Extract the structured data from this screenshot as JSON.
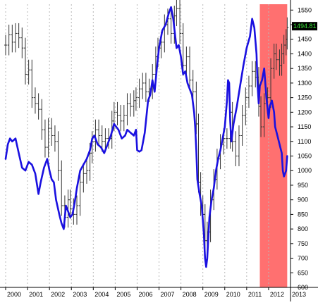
{
  "chart_data": {
    "type": "line",
    "grid": "vertical dashed lines at each year",
    "x_range": [
      2000,
      2013
    ],
    "y_range": [
      600,
      1570
    ],
    "y_axis_side": "right",
    "x_ticks": [
      "2000",
      "2001",
      "2002",
      "2003",
      "2004",
      "2005",
      "2006",
      "2007",
      "2008",
      "2009",
      "2010",
      "2011",
      "2012",
      "2013"
    ],
    "y_ticks": [
      "600",
      "650",
      "700",
      "750",
      "800",
      "850",
      "900",
      "950",
      "1000",
      "1050",
      "1100",
      "1150",
      "1200",
      "1250",
      "1300",
      "1350",
      "1400",
      "1450",
      "1500",
      "1550"
    ],
    "last_value_label": "1494.81",
    "highlight_region": {
      "x_start": 2011.6,
      "x_end": 2012.85,
      "color": "#ff7070"
    },
    "series": [
      {
        "style": "ohlc-bars",
        "color": "#333333",
        "points": [
          [
            2000.0,
            1430
          ],
          [
            2000.15,
            1465
          ],
          [
            2000.3,
            1440
          ],
          [
            2000.45,
            1470
          ],
          [
            2000.6,
            1455
          ],
          [
            2000.75,
            1420
          ],
          [
            2000.9,
            1330
          ],
          [
            2001.05,
            1345
          ],
          [
            2001.2,
            1250
          ],
          [
            2001.35,
            1230
          ],
          [
            2001.5,
            1210
          ],
          [
            2001.65,
            1140
          ],
          [
            2001.8,
            1080
          ],
          [
            2001.95,
            1145
          ],
          [
            2002.1,
            1120
          ],
          [
            2002.25,
            1100
          ],
          [
            2002.4,
            1000
          ],
          [
            2002.55,
            880
          ],
          [
            2002.7,
            840
          ],
          [
            2002.85,
            900
          ],
          [
            2002.95,
            870
          ],
          [
            2003.1,
            850
          ],
          [
            2003.25,
            880
          ],
          [
            2003.4,
            960
          ],
          [
            2003.55,
            990
          ],
          [
            2003.7,
            1000
          ],
          [
            2003.85,
            1060
          ],
          [
            2003.95,
            1100
          ],
          [
            2004.1,
            1140
          ],
          [
            2004.25,
            1120
          ],
          [
            2004.4,
            1100
          ],
          [
            2004.55,
            1110
          ],
          [
            2004.7,
            1110
          ],
          [
            2004.85,
            1170
          ],
          [
            2004.95,
            1200
          ],
          [
            2005.1,
            1190
          ],
          [
            2005.25,
            1170
          ],
          [
            2005.4,
            1190
          ],
          [
            2005.55,
            1230
          ],
          [
            2005.7,
            1220
          ],
          [
            2005.85,
            1240
          ],
          [
            2005.95,
            1250
          ],
          [
            2006.1,
            1280
          ],
          [
            2006.25,
            1300
          ],
          [
            2006.4,
            1270
          ],
          [
            2006.55,
            1280
          ],
          [
            2006.7,
            1330
          ],
          [
            2006.85,
            1390
          ],
          [
            2006.95,
            1420
          ],
          [
            2007.1,
            1440
          ],
          [
            2007.25,
            1500
          ],
          [
            2007.4,
            1520
          ],
          [
            2007.55,
            1470
          ],
          [
            2007.7,
            1530
          ],
          [
            2007.8,
            1555
          ],
          [
            2007.95,
            1470
          ],
          [
            2008.1,
            1360
          ],
          [
            2008.25,
            1390
          ],
          [
            2008.4,
            1310
          ],
          [
            2008.55,
            1270
          ],
          [
            2008.7,
            1160
          ],
          [
            2008.8,
            960
          ],
          [
            2008.9,
            880
          ],
          [
            2009.0,
            850
          ],
          [
            2009.1,
            760
          ],
          [
            2009.2,
            790
          ],
          [
            2009.35,
            900
          ],
          [
            2009.5,
            970
          ],
          [
            2009.65,
            1040
          ],
          [
            2009.8,
            1090
          ],
          [
            2009.95,
            1110
          ],
          [
            2010.1,
            1110
          ],
          [
            2010.25,
            1200
          ],
          [
            2010.35,
            1100
          ],
          [
            2010.5,
            1050
          ],
          [
            2010.65,
            1120
          ],
          [
            2010.8,
            1190
          ],
          [
            2010.95,
            1250
          ],
          [
            2011.1,
            1290
          ],
          [
            2011.25,
            1340
          ],
          [
            2011.4,
            1320
          ],
          [
            2011.55,
            1220
          ],
          [
            2011.65,
            1150
          ],
          [
            2011.8,
            1230
          ],
          [
            2011.95,
            1250
          ],
          [
            2012.1,
            1350
          ],
          [
            2012.25,
            1400
          ],
          [
            2012.35,
            1380
          ],
          [
            2012.5,
            1360
          ],
          [
            2012.6,
            1400
          ],
          [
            2012.7,
            1430
          ],
          [
            2012.8,
            1450
          ],
          [
            2012.85,
            1490
          ]
        ]
      },
      {
        "style": "line",
        "color": "#1a10e0",
        "points": [
          [
            2000.0,
            1040
          ],
          [
            2000.1,
            1090
          ],
          [
            2000.2,
            1110
          ],
          [
            2000.3,
            1100
          ],
          [
            2000.45,
            1110
          ],
          [
            2000.6,
            1060
          ],
          [
            2000.75,
            1010
          ],
          [
            2000.9,
            1000
          ],
          [
            2001.05,
            1030
          ],
          [
            2001.2,
            1020
          ],
          [
            2001.35,
            990
          ],
          [
            2001.5,
            920
          ],
          [
            2001.6,
            960
          ],
          [
            2001.75,
            1010
          ],
          [
            2001.9,
            1040
          ],
          [
            2002.0,
            1000
          ],
          [
            2002.1,
            970
          ],
          [
            2002.2,
            960
          ],
          [
            2002.3,
            900
          ],
          [
            2002.45,
            850
          ],
          [
            2002.55,
            820
          ],
          [
            2002.65,
            800
          ],
          [
            2002.75,
            880
          ],
          [
            2002.85,
            860
          ],
          [
            2002.95,
            840
          ],
          [
            2003.05,
            850
          ],
          [
            2003.15,
            890
          ],
          [
            2003.25,
            940
          ],
          [
            2003.4,
            1000
          ],
          [
            2003.55,
            1020
          ],
          [
            2003.7,
            1040
          ],
          [
            2003.85,
            1070
          ],
          [
            2003.95,
            1110
          ],
          [
            2004.05,
            1120
          ],
          [
            2004.2,
            1090
          ],
          [
            2004.35,
            1080
          ],
          [
            2004.5,
            1060
          ],
          [
            2004.65,
            1090
          ],
          [
            2004.8,
            1120
          ],
          [
            2004.95,
            1160
          ],
          [
            2005.05,
            1150
          ],
          [
            2005.15,
            1140
          ],
          [
            2005.3,
            1110
          ],
          [
            2005.45,
            1120
          ],
          [
            2005.55,
            1140
          ],
          [
            2005.7,
            1130
          ],
          [
            2005.85,
            1120
          ],
          [
            2005.95,
            1140
          ],
          [
            2006.0,
            1070
          ],
          [
            2006.1,
            1065
          ],
          [
            2006.2,
            1070
          ],
          [
            2006.35,
            1130
          ],
          [
            2006.5,
            1240
          ],
          [
            2006.6,
            1260
          ],
          [
            2006.7,
            1310
          ],
          [
            2006.8,
            1270
          ],
          [
            2006.9,
            1350
          ],
          [
            2007.0,
            1420
          ],
          [
            2007.15,
            1480
          ],
          [
            2007.3,
            1500
          ],
          [
            2007.45,
            1540
          ],
          [
            2007.55,
            1560
          ],
          [
            2007.65,
            1520
          ],
          [
            2007.8,
            1420
          ],
          [
            2007.9,
            1430
          ],
          [
            2008.0,
            1390
          ],
          [
            2008.1,
            1330
          ],
          [
            2008.2,
            1340
          ],
          [
            2008.3,
            1300
          ],
          [
            2008.4,
            1280
          ],
          [
            2008.5,
            1260
          ],
          [
            2008.6,
            1200
          ],
          [
            2008.65,
            1150
          ],
          [
            2008.7,
            1070
          ],
          [
            2008.75,
            970
          ],
          [
            2008.85,
            920
          ],
          [
            2008.95,
            880
          ],
          [
            2009.0,
            830
          ],
          [
            2009.05,
            780
          ],
          [
            2009.1,
            700
          ],
          [
            2009.15,
            670
          ],
          [
            2009.2,
            700
          ],
          [
            2009.3,
            840
          ],
          [
            2009.4,
            900
          ],
          [
            2009.5,
            940
          ],
          [
            2009.6,
            1000
          ],
          [
            2009.7,
            1040
          ],
          [
            2009.8,
            1070
          ],
          [
            2009.9,
            1110
          ],
          [
            2010.0,
            1150
          ],
          [
            2010.1,
            1240
          ],
          [
            2010.15,
            1310
          ],
          [
            2010.2,
            1300
          ],
          [
            2010.25,
            1170
          ],
          [
            2010.3,
            1100
          ],
          [
            2010.4,
            1160
          ],
          [
            2010.55,
            1220
          ],
          [
            2010.7,
            1290
          ],
          [
            2010.85,
            1360
          ],
          [
            2011.0,
            1420
          ],
          [
            2011.15,
            1460
          ],
          [
            2011.25,
            1520
          ],
          [
            2011.35,
            1490
          ],
          [
            2011.45,
            1400
          ],
          [
            2011.5,
            1290
          ],
          [
            2011.55,
            1230
          ],
          [
            2011.6,
            1290
          ],
          [
            2011.7,
            1310
          ],
          [
            2011.8,
            1350
          ],
          [
            2011.9,
            1250
          ],
          [
            2012.0,
            1180
          ],
          [
            2012.05,
            1220
          ],
          [
            2012.15,
            1240
          ],
          [
            2012.25,
            1200
          ],
          [
            2012.3,
            1150
          ],
          [
            2012.4,
            1120
          ],
          [
            2012.5,
            1090
          ],
          [
            2012.6,
            1060
          ],
          [
            2012.65,
            1000
          ],
          [
            2012.7,
            980
          ],
          [
            2012.8,
            1000
          ],
          [
            2012.85,
            1050
          ]
        ]
      }
    ]
  }
}
